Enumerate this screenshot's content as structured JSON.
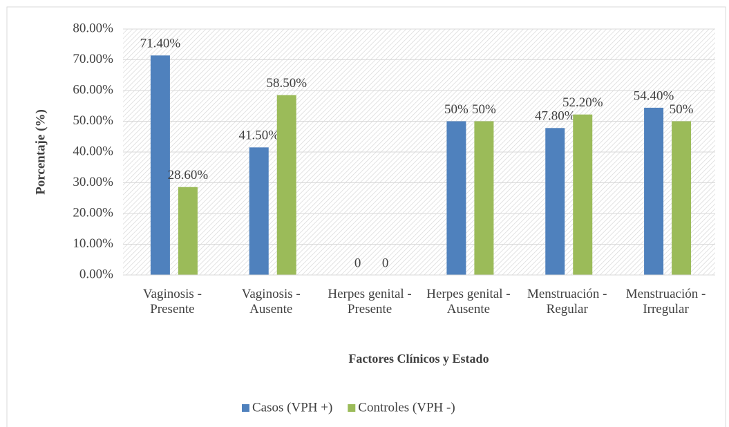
{
  "chart_data": {
    "type": "bar",
    "categories": [
      "Vaginosis - Presente",
      "Vaginosis - Ausente",
      "Herpes genital - Presente",
      "Herpes genital - Ausente",
      "Menstruación - Regular",
      "Menstruación - Irregular"
    ],
    "series": [
      {
        "name": "Casos (VPH +)",
        "color": "#4f81bd",
        "values": [
          71.4,
          41.5,
          0,
          50,
          47.8,
          54.4
        ],
        "value_labels": [
          "71.40%",
          "41.50%",
          "0",
          "50%",
          "47.80%",
          "54.40%"
        ]
      },
      {
        "name": "Controles (VPH -)",
        "color": "#9bbb59",
        "values": [
          28.6,
          58.5,
          0,
          50,
          52.2,
          50
        ],
        "value_labels": [
          "28.60%",
          "58.50%",
          "0",
          "50%",
          "52.20%",
          "50%"
        ]
      }
    ],
    "y_label": "Porcentaje (%)",
    "x_label": "Factores  Clínicos  y Estado",
    "ylim": [
      0,
      80
    ],
    "yticks": [
      {
        "value": 0,
        "label": "0.00%"
      },
      {
        "value": 10,
        "label": "10.00%"
      },
      {
        "value": 20,
        "label": "20.00%"
      },
      {
        "value": 30,
        "label": "30.00%"
      },
      {
        "value": 40,
        "label": "40.00%"
      },
      {
        "value": 50,
        "label": "50.00%"
      },
      {
        "value": 60,
        "label": "60.00%"
      },
      {
        "value": 70,
        "label": "70.00%"
      },
      {
        "value": 80,
        "label": "80.00%"
      }
    ],
    "grid": true,
    "legend": "bottom"
  }
}
